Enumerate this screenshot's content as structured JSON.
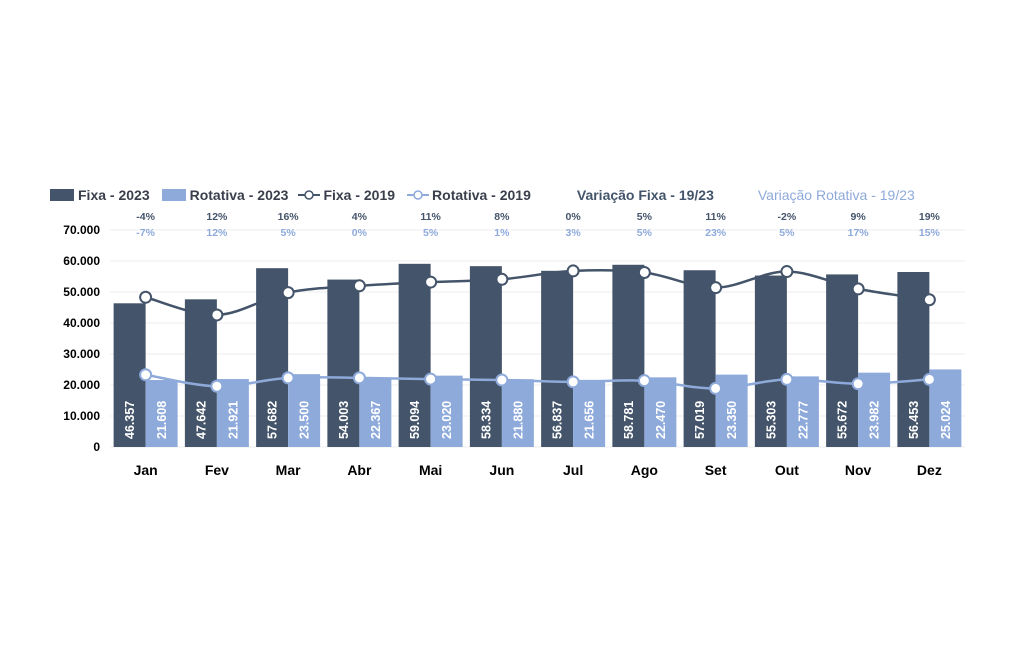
{
  "chart_data": {
    "type": "bar",
    "categories": [
      "Jan",
      "Fev",
      "Mar",
      "Abr",
      "Mai",
      "Jun",
      "Jul",
      "Ago",
      "Set",
      "Out",
      "Nov",
      "Dez"
    ],
    "series": [
      {
        "name": "Fixa - 2023",
        "kind": "bar",
        "color": "#44546a",
        "values": [
          46357,
          47642,
          57682,
          54003,
          59094,
          58334,
          56837,
          58781,
          57019,
          55303,
          55672,
          56453
        ],
        "labels": [
          "46.357",
          "47.642",
          "57.682",
          "54.003",
          "59.094",
          "58.334",
          "56.837",
          "58.781",
          "57.019",
          "55.303",
          "55.672",
          "56.453"
        ]
      },
      {
        "name": "Rotativa - 2023",
        "kind": "bar",
        "color": "#8eaadb",
        "values": [
          21608,
          21921,
          23500,
          22367,
          23020,
          21880,
          21656,
          22470,
          23350,
          22777,
          23982,
          25024
        ],
        "labels": [
          "21.608",
          "21.921",
          "23.500",
          "22.367",
          "23.020",
          "21.880",
          "21.656",
          "22.470",
          "23.350",
          "22.777",
          "23.982",
          "25.024"
        ]
      },
      {
        "name": "Fixa - 2019",
        "kind": "line",
        "color": "#44546a",
        "values": [
          48300,
          42600,
          49800,
          52000,
          53200,
          54100,
          56800,
          56300,
          51400,
          56600,
          51000,
          47500
        ]
      },
      {
        "name": "Rotativa - 2019",
        "kind": "line",
        "color": "#8eaadb",
        "values": [
          23300,
          19600,
          22300,
          22300,
          21900,
          21600,
          21000,
          21400,
          18900,
          21800,
          20400,
          21800
        ]
      }
    ],
    "variation": [
      {
        "name": "Variação Fixa - 19/23",
        "color": "#44546a",
        "values": [
          "-4%",
          "12%",
          "16%",
          "4%",
          "11%",
          "8%",
          "0%",
          "5%",
          "11%",
          "-2%",
          "9%",
          "19%"
        ]
      },
      {
        "name": "Variação Rotativa - 19/23",
        "color": "#8eaadb",
        "values": [
          "-7%",
          "12%",
          "5%",
          "0%",
          "5%",
          "1%",
          "3%",
          "5%",
          "23%",
          "5%",
          "17%",
          "15%"
        ]
      }
    ],
    "y_ticks": [
      "0",
      "10.000",
      "20.000",
      "30.000",
      "40.000",
      "50.000",
      "60.000",
      "70.000"
    ],
    "ylim": [
      0,
      70000
    ],
    "grid": true,
    "legend_position": "top"
  }
}
